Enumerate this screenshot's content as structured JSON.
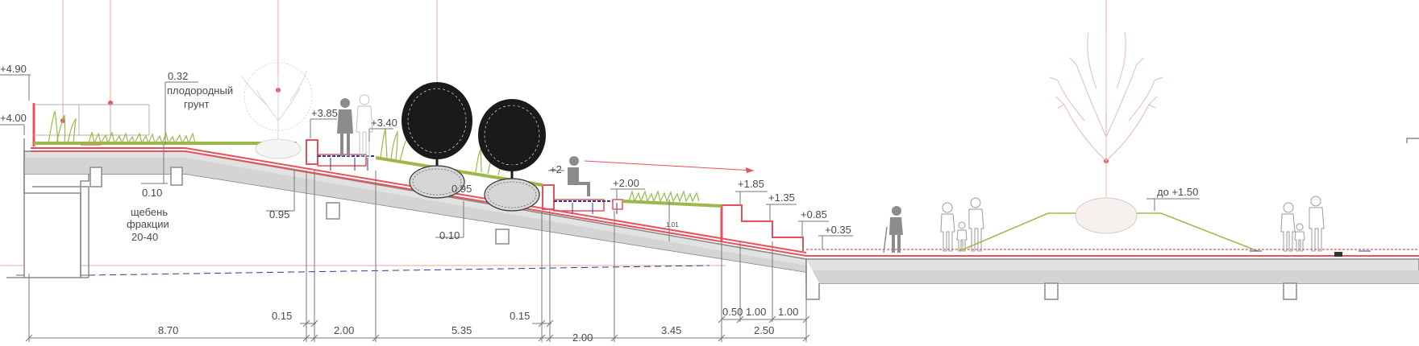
{
  "levels": {
    "l_490": "+4.90",
    "l_400": "+4.00",
    "l_385": "+3.85",
    "l_340": "+3.40",
    "l_2x": "+2",
    "l_200": "+2.00",
    "l_185": "+1.85",
    "l_135": "+1.35",
    "l_085": "+0.85",
    "l_035": "+0.35",
    "l_150": "до +1.50"
  },
  "notes": {
    "soil_thickness": "0.32",
    "soil_line1": "плодородный",
    "soil_line2": "грунт",
    "gravel_thickness": "0.10",
    "gravel_line1": "щебень",
    "gravel_line2": "фракции",
    "gravel_line3": "20-40",
    "wall_095": "0.95",
    "planter_095": "0.95",
    "slab_010": "0.10",
    "slope_tiny": "1.01"
  },
  "dimensions": {
    "d_870": "8.70",
    "d_015a": "0.15",
    "d_200a": "2.00",
    "d_535": "5.35",
    "d_015b": "0.15",
    "d_200b": "2.00",
    "d_345": "3.45",
    "d_050": "0.50",
    "d_100a": "1.00",
    "d_100b": "1.00",
    "d_250": "2.50"
  },
  "colors": {
    "structure": "#8a8a8a",
    "slab_fill": "#e2e2e2",
    "waterproof": "#e8505b",
    "grass": "#9db84a",
    "tree_dark": "#1a1a1a",
    "tree_light": "#e8b9b4",
    "people": "#8c8c8c",
    "axis": "#e9a59c",
    "blue": "#2b3a9a"
  }
}
